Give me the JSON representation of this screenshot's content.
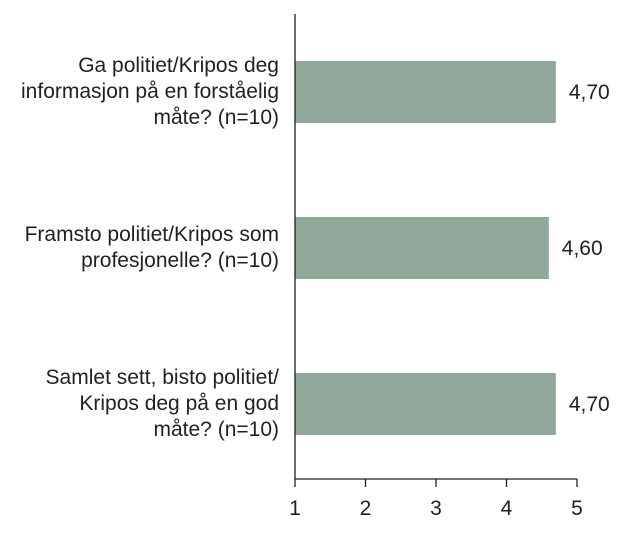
{
  "chart_data": {
    "type": "bar",
    "orientation": "horizontal",
    "categories": [
      "Ga politiet/Kripos deg\ninformasjon på en forståelig\nmåte? (n=10)",
      "Framsto politiet/Kripos som\nprofesjonelle? (n=10)",
      "Samlet sett, bisto politiet/\nKripos deg på en god\nmåte? (n=10)"
    ],
    "values": [
      4.7,
      4.6,
      4.7
    ],
    "data_labels": [
      "4,70",
      "4,60",
      "4,70"
    ],
    "xlim": [
      1,
      5
    ],
    "xticks": [
      "1",
      "2",
      "3",
      "4",
      "5"
    ],
    "grid": false,
    "legend": "none",
    "bar_color": "#8fa89a",
    "axis_color": "#231f20",
    "text_color": "#231f20"
  }
}
